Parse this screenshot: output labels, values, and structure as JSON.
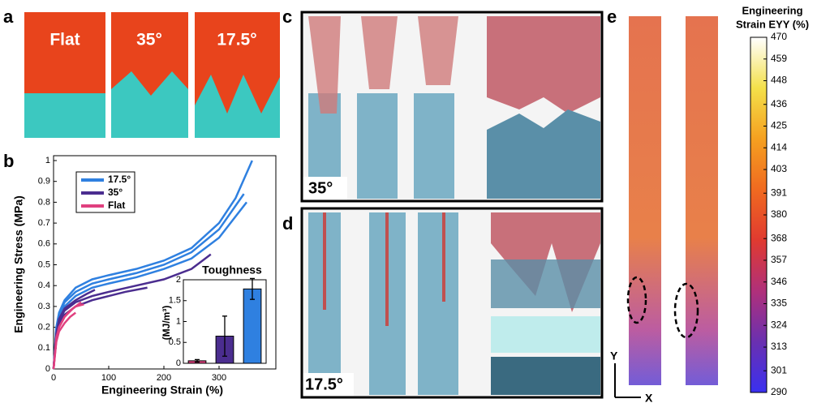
{
  "panels": {
    "a": "a",
    "b": "b",
    "c": "c",
    "d": "d",
    "e": "e"
  },
  "photo_labels": [
    "Flat",
    "35°",
    "17.5°"
  ],
  "c_label": "35°",
  "d_label": "17.5°",
  "e_axes": {
    "y": "Y",
    "x": "X"
  },
  "chart_data": {
    "type": "line",
    "ylabel": "Engineering Stress (MPa)",
    "xlabel": "Engineering Strain (%)",
    "xlim": [
      0,
      400
    ],
    "xticks": [
      0,
      100,
      200,
      300
    ],
    "ylim": [
      0,
      1
    ],
    "yticks": [
      0,
      0.1,
      0.2,
      0.3,
      0.4,
      0.5,
      0.6,
      0.7,
      0.8,
      0.9,
      1
    ],
    "series": [
      {
        "name": "17.5°",
        "color": "#2f80e0",
        "curves": [
          {
            "x": [
              0,
              5,
              10,
              20,
              40,
              70,
              100,
              150,
              200,
              250,
              300,
              330,
              360
            ],
            "values": [
              0,
              0.2,
              0.27,
              0.33,
              0.39,
              0.43,
              0.45,
              0.48,
              0.52,
              0.58,
              0.7,
              0.82,
              1.0
            ]
          },
          {
            "x": [
              0,
              5,
              10,
              20,
              40,
              70,
              100,
              150,
              200,
              250,
              300,
              345
            ],
            "values": [
              0,
              0.19,
              0.26,
              0.32,
              0.37,
              0.41,
              0.43,
              0.46,
              0.5,
              0.56,
              0.67,
              0.84
            ]
          },
          {
            "x": [
              0,
              5,
              10,
              20,
              40,
              70,
              100,
              150,
              200,
              250,
              300,
              350
            ],
            "values": [
              0,
              0.18,
              0.25,
              0.3,
              0.35,
              0.39,
              0.41,
              0.44,
              0.48,
              0.53,
              0.63,
              0.8
            ]
          }
        ]
      },
      {
        "name": "35°",
        "color": "#4b2d8f",
        "curves": [
          {
            "x": [
              0,
              5,
              10,
              20,
              40,
              70,
              100,
              150,
              200,
              250,
              285
            ],
            "values": [
              0,
              0.17,
              0.23,
              0.28,
              0.32,
              0.35,
              0.37,
              0.4,
              0.43,
              0.48,
              0.55
            ]
          },
          {
            "x": [
              0,
              5,
              10,
              20,
              40,
              70,
              100,
              130,
              170
            ],
            "values": [
              0,
              0.16,
              0.22,
              0.26,
              0.3,
              0.33,
              0.35,
              0.37,
              0.39
            ]
          },
          {
            "x": [
              0,
              5,
              10,
              20,
              40,
              60,
              75
            ],
            "values": [
              0,
              0.17,
              0.24,
              0.29,
              0.33,
              0.36,
              0.38
            ]
          }
        ]
      },
      {
        "name": "Flat",
        "color": "#e0407f",
        "curves": [
          {
            "x": [
              0,
              5,
              10,
              20,
              30,
              40,
              55
            ],
            "values": [
              0,
              0.15,
              0.2,
              0.25,
              0.28,
              0.3,
              0.31
            ]
          },
          {
            "x": [
              0,
              5,
              10,
              20,
              30,
              40
            ],
            "values": [
              0,
              0.13,
              0.18,
              0.22,
              0.25,
              0.27
            ]
          },
          {
            "x": [
              0,
              5,
              10,
              20,
              35,
              50
            ],
            "values": [
              0,
              0.14,
              0.2,
              0.25,
              0.29,
              0.32
            ]
          }
        ]
      }
    ],
    "inset": {
      "type": "bar",
      "title": "Toughness",
      "ylabel": "(MJ/m³)",
      "ylim": [
        0,
        2
      ],
      "yticks": [
        0,
        0.5,
        1,
        1.5,
        2
      ],
      "values": [
        0.06,
        0.65,
        1.78
      ],
      "errors": [
        0.03,
        0.48,
        0.25
      ],
      "colors": [
        "#e0407f",
        "#4b2d8f",
        "#2f80e0"
      ]
    }
  },
  "colorbar": {
    "title": [
      "Engineering",
      "Strain EYY (%)"
    ],
    "lim": [
      290,
      470
    ],
    "ticks": [
      470,
      459,
      448,
      436,
      425,
      414,
      403,
      391,
      380,
      368,
      357,
      346,
      335,
      324,
      313,
      301,
      290
    ],
    "colors": [
      "#ffffff",
      "#f4e04a",
      "#f5a020",
      "#f06a20",
      "#e03a30",
      "#b0307a",
      "#6a30b0",
      "#3a30f0"
    ]
  }
}
